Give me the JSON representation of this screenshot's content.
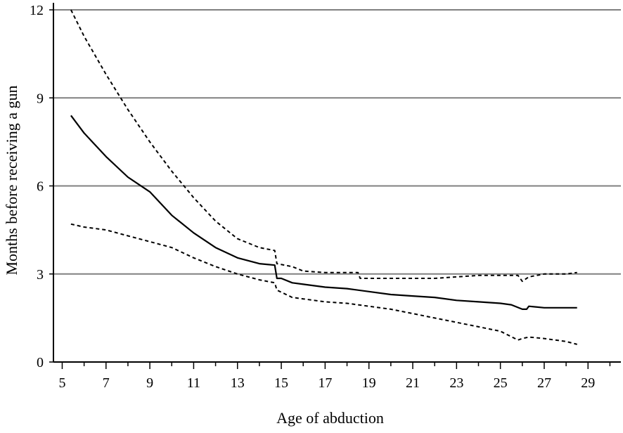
{
  "chart_data": {
    "type": "line",
    "title": "",
    "xlabel": "Age of abduction",
    "ylabel": "Months before receiving a gun",
    "xlim": [
      4.6,
      30.5
    ],
    "ylim": [
      0,
      12
    ],
    "x_ticks": [
      "5",
      "7",
      "9",
      "11",
      "13",
      "15",
      "17",
      "19",
      "21",
      "23",
      "25",
      "27",
      "29"
    ],
    "y_ticks": [
      "0",
      "3",
      "6",
      "9",
      "12"
    ],
    "grid": "horizontal lines at 3, 6, 9, 12",
    "legend": "none",
    "colors": {
      "lines": "#000000",
      "grid": "#808080",
      "axis": "#000000"
    },
    "series": [
      {
        "style": "dashed",
        "x": [
          5.4,
          6,
          7,
          8,
          9,
          10,
          11,
          12,
          13,
          14,
          14.7,
          14.8,
          15.5,
          16,
          17,
          18,
          18.5,
          18.6,
          19,
          20,
          21,
          22,
          23,
          24,
          25,
          25.8,
          26,
          26.3,
          27,
          28,
          28.5
        ],
        "y": [
          12.0,
          11.1,
          9.8,
          8.6,
          7.5,
          6.5,
          5.6,
          4.8,
          4.2,
          3.9,
          3.8,
          3.35,
          3.25,
          3.1,
          3.05,
          3.05,
          3.05,
          2.85,
          2.85,
          2.85,
          2.85,
          2.85,
          2.9,
          2.95,
          2.95,
          2.95,
          2.75,
          2.9,
          3.0,
          3.0,
          3.05
        ]
      },
      {
        "style": "solid",
        "x": [
          5.4,
          6,
          7,
          8,
          9,
          10,
          11,
          12,
          13,
          14,
          14.7,
          14.8,
          15,
          15.5,
          16,
          17,
          18,
          19,
          20,
          21,
          22,
          23,
          24,
          25,
          25.5,
          26,
          26.2,
          26.3,
          27,
          28,
          28.5
        ],
        "y": [
          8.4,
          7.8,
          7.0,
          6.3,
          5.8,
          5.0,
          4.4,
          3.9,
          3.55,
          3.35,
          3.3,
          2.85,
          2.85,
          2.7,
          2.65,
          2.55,
          2.5,
          2.4,
          2.3,
          2.25,
          2.2,
          2.1,
          2.05,
          2.0,
          1.95,
          1.8,
          1.8,
          1.9,
          1.85,
          1.85,
          1.85
        ]
      },
      {
        "style": "dashed",
        "x": [
          5.4,
          6,
          7,
          8,
          9,
          10,
          11,
          12,
          13,
          14,
          14.7,
          14.8,
          15.5,
          16,
          17,
          18,
          19,
          20,
          21,
          22,
          23,
          24,
          25,
          25.8,
          26,
          26.3,
          27,
          28,
          28.5
        ],
        "y": [
          4.7,
          4.6,
          4.5,
          4.3,
          4.1,
          3.9,
          3.55,
          3.25,
          3.0,
          2.8,
          2.7,
          2.45,
          2.2,
          2.15,
          2.05,
          2.0,
          1.9,
          1.8,
          1.65,
          1.5,
          1.35,
          1.2,
          1.05,
          0.75,
          0.8,
          0.85,
          0.8,
          0.7,
          0.6
        ]
      }
    ]
  }
}
